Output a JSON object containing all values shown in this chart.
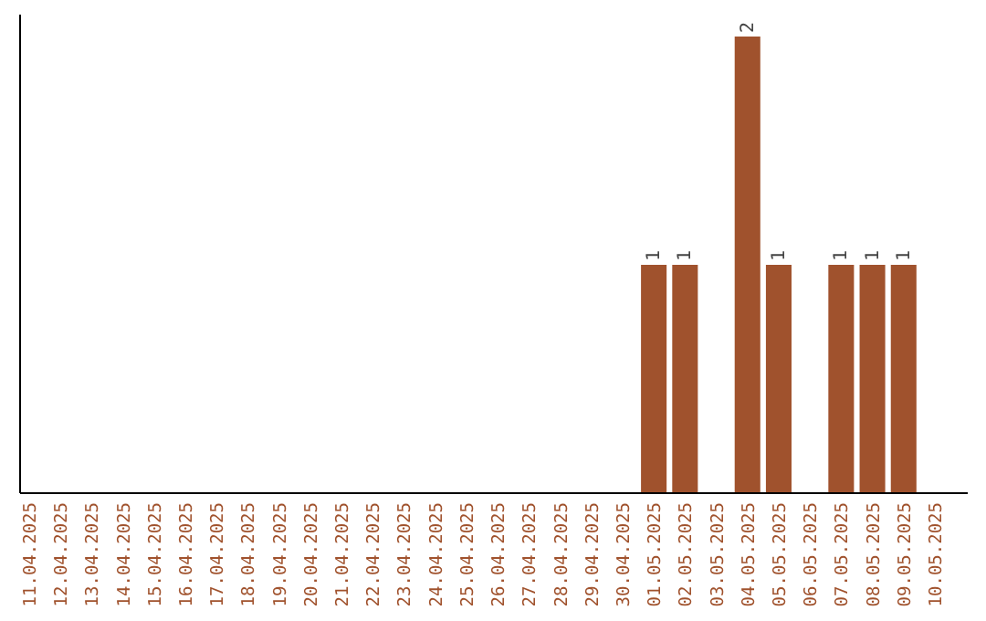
{
  "chart_data": {
    "type": "bar",
    "categories": [
      "11.04.2025",
      "12.04.2025",
      "13.04.2025",
      "14.04.2025",
      "15.04.2025",
      "16.04.2025",
      "17.04.2025",
      "18.04.2025",
      "19.04.2025",
      "20.04.2025",
      "21.04.2025",
      "22.04.2025",
      "23.04.2025",
      "24.04.2025",
      "25.04.2025",
      "26.04.2025",
      "27.04.2025",
      "28.04.2025",
      "29.04.2025",
      "30.04.2025",
      "01.05.2025",
      "02.05.2025",
      "03.05.2025",
      "04.05.2025",
      "05.05.2025",
      "06.05.2025",
      "07.05.2025",
      "08.05.2025",
      "09.05.2025",
      "10.05.2025"
    ],
    "values": [
      null,
      null,
      null,
      null,
      null,
      null,
      null,
      null,
      null,
      null,
      null,
      null,
      null,
      null,
      null,
      null,
      null,
      null,
      null,
      null,
      1,
      1,
      null,
      2,
      1,
      null,
      1,
      1,
      1,
      null
    ],
    "data_labels": true,
    "color": "#a0522d"
  }
}
